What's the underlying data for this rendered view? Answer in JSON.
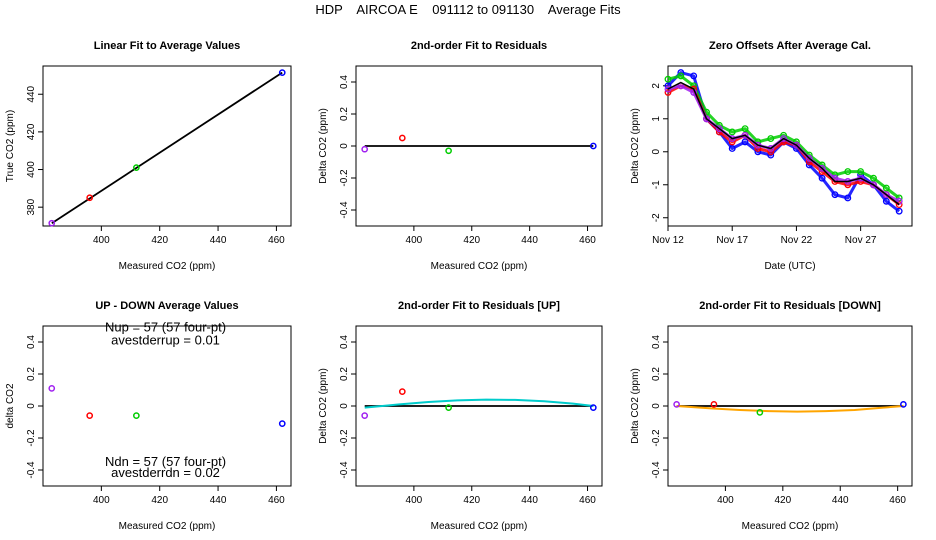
{
  "page_title": "HDP    AIRCOA E    091112 to 091130    Average Fits",
  "chart_data": [
    {
      "type": "scatter",
      "title": "Linear Fit to Average Values",
      "xlabel": "Measured CO2 (ppm)",
      "ylabel": "True CO2 (ppm)",
      "xlim": [
        380,
        465
      ],
      "ylim": [
        370,
        455
      ],
      "xticks": [
        400,
        420,
        440,
        460
      ],
      "yticks": [
        380,
        400,
        420,
        440
      ],
      "points": [
        {
          "x": 383,
          "y": 371.5,
          "color": "#a020f0"
        },
        {
          "x": 396,
          "y": 385,
          "color": "#ff0000"
        },
        {
          "x": 412,
          "y": 401,
          "color": "#00cc00"
        },
        {
          "x": 462,
          "y": 451.5,
          "color": "#0000ff"
        }
      ],
      "lines": [
        {
          "x": [
            383,
            462
          ],
          "y": [
            371.5,
            451.5
          ],
          "color": "#000000"
        }
      ]
    },
    {
      "type": "scatter",
      "title": "2nd-order Fit to Residuals",
      "xlabel": "Measured CO2 (ppm)",
      "ylabel": "Delta CO2 (ppm)",
      "xlim": [
        380,
        465
      ],
      "ylim": [
        -0.5,
        0.5
      ],
      "xticks": [
        400,
        420,
        440,
        460
      ],
      "yticks": [
        -0.4,
        -0.2,
        0.0,
        0.2,
        0.4
      ],
      "points": [
        {
          "x": 383,
          "y": -0.02,
          "color": "#a020f0"
        },
        {
          "x": 396,
          "y": 0.05,
          "color": "#ff0000"
        },
        {
          "x": 412,
          "y": -0.03,
          "color": "#00cc00"
        },
        {
          "x": 462,
          "y": 0.0,
          "color": "#0000ff"
        }
      ],
      "lines": [
        {
          "x": [
            383,
            405,
            445,
            462
          ],
          "y": [
            0.0,
            0.0,
            0.0,
            0.0
          ],
          "color": "#000000"
        }
      ]
    },
    {
      "type": "line",
      "title": "Zero Offsets After Average Cal.",
      "xlabel": "Date (UTC)",
      "ylabel": "Delta CO2 (ppm)",
      "xlim": [
        "Nov 12",
        "Dec 1"
      ],
      "ylim": [
        -2.25,
        2.6
      ],
      "xtick_labels": [
        "Nov 12",
        "Nov 17",
        "Nov 22",
        "Nov 27"
      ],
      "yticks": [
        -2,
        -1,
        0,
        1,
        2
      ],
      "series": [
        {
          "color": "#0000ff",
          "x": [
            "Nov 12",
            "Nov 13",
            "Nov 14",
            "Nov 15",
            "Nov 16",
            "Nov 17",
            "Nov 18",
            "Nov 19",
            "Nov 20",
            "Nov 21",
            "Nov 22",
            "Nov 23",
            "Nov 24",
            "Nov 25",
            "Nov 26",
            "Nov 27",
            "Nov 28",
            "Nov 29",
            "Nov 30"
          ],
          "y": [
            2.0,
            2.4,
            2.3,
            1.0,
            0.6,
            0.1,
            0.3,
            0.0,
            -0.1,
            0.3,
            0.1,
            -0.4,
            -0.8,
            -1.3,
            -1.4,
            -0.7,
            -1.0,
            -1.5,
            -1.8
          ]
        },
        {
          "color": "#00cc00",
          "x": [
            "Nov 12",
            "Nov 13",
            "Nov 14",
            "Nov 15",
            "Nov 16",
            "Nov 17",
            "Nov 18",
            "Nov 19",
            "Nov 20",
            "Nov 21",
            "Nov 22",
            "Nov 23",
            "Nov 24",
            "Nov 25",
            "Nov 26",
            "Nov 27",
            "Nov 28",
            "Nov 29",
            "Nov 30"
          ],
          "y": [
            2.2,
            2.3,
            2.0,
            1.2,
            0.8,
            0.6,
            0.7,
            0.3,
            0.4,
            0.5,
            0.3,
            -0.1,
            -0.4,
            -0.7,
            -0.6,
            -0.6,
            -0.8,
            -1.1,
            -1.4
          ]
        },
        {
          "color": "#ff0000",
          "x": [
            "Nov 12",
            "Nov 13",
            "Nov 14",
            "Nov 15",
            "Nov 16",
            "Nov 17",
            "Nov 18",
            "Nov 19",
            "Nov 20",
            "Nov 21",
            "Nov 22",
            "Nov 23",
            "Nov 24",
            "Nov 25",
            "Nov 26",
            "Nov 27",
            "Nov 28",
            "Nov 29",
            "Nov 30"
          ],
          "y": [
            1.8,
            2.0,
            1.9,
            1.0,
            0.6,
            0.3,
            0.5,
            0.1,
            0.0,
            0.3,
            0.2,
            -0.3,
            -0.6,
            -0.9,
            -1.0,
            -0.9,
            -1.0,
            -1.3,
            -1.6
          ]
        },
        {
          "color": "#a020f0",
          "x": [
            "Nov 12",
            "Nov 13",
            "Nov 14",
            "Nov 15",
            "Nov 16",
            "Nov 17",
            "Nov 18",
            "Nov 19",
            "Nov 20",
            "Nov 21",
            "Nov 22",
            "Nov 23",
            "Nov 24",
            "Nov 25",
            "Nov 26",
            "Nov 27",
            "Nov 28",
            "Nov 29",
            "Nov 30"
          ],
          "y": [
            1.9,
            2.0,
            1.8,
            1.0,
            0.7,
            0.4,
            0.5,
            0.2,
            0.1,
            0.4,
            0.2,
            -0.2,
            -0.5,
            -0.8,
            -0.9,
            -0.8,
            -1.0,
            -1.3,
            -1.5
          ]
        },
        {
          "color": "#000000",
          "x": [
            "Nov 12",
            "Nov 13",
            "Nov 14",
            "Nov 15",
            "Nov 16",
            "Nov 17",
            "Nov 18",
            "Nov 19",
            "Nov 20",
            "Nov 21",
            "Nov 22",
            "Nov 23",
            "Nov 24",
            "Nov 25",
            "Nov 26",
            "Nov 27",
            "Nov 28",
            "Nov 29",
            "Nov 30"
          ],
          "y": [
            1.9,
            2.1,
            1.9,
            1.0,
            0.7,
            0.4,
            0.5,
            0.2,
            0.1,
            0.4,
            0.2,
            -0.2,
            -0.5,
            -0.9,
            -0.9,
            -0.8,
            -1.0,
            -1.3,
            -1.6
          ]
        }
      ]
    },
    {
      "type": "scatter",
      "title": "UP - DOWN Average Values",
      "xlabel": "Measured CO2 (ppm)",
      "ylabel": "delta CO2",
      "xlim": [
        380,
        465
      ],
      "ylim": [
        -0.5,
        0.5
      ],
      "xticks": [
        400,
        420,
        440,
        460
      ],
      "yticks": [
        -0.4,
        -0.2,
        0.0,
        0.2,
        0.4
      ],
      "annotations": [
        {
          "text": "Nup = 57 (57 four-pt)",
          "x": 422,
          "y": 0.465
        },
        {
          "text": "avestderrup =  0.01",
          "x": 422,
          "y": 0.385
        },
        {
          "text": "Ndn = 57 (57 four-pt)",
          "x": 422,
          "y": -0.375
        },
        {
          "text": "avestderrdn =  0.02",
          "x": 422,
          "y": -0.445
        }
      ],
      "points": [
        {
          "x": 383,
          "y": 0.11,
          "color": "#a020f0"
        },
        {
          "x": 396,
          "y": -0.06,
          "color": "#ff0000"
        },
        {
          "x": 412,
          "y": -0.06,
          "color": "#00cc00"
        },
        {
          "x": 462,
          "y": -0.11,
          "color": "#0000ff"
        }
      ]
    },
    {
      "type": "scatter",
      "title": "2nd-order Fit to Residuals [UP]",
      "xlabel": "Measured CO2 (ppm)",
      "ylabel": "Delta CO2 (ppm)",
      "xlim": [
        380,
        465
      ],
      "ylim": [
        -0.5,
        0.5
      ],
      "xticks": [
        400,
        420,
        440,
        460
      ],
      "yticks": [
        -0.4,
        -0.2,
        0.0,
        0.2,
        0.4
      ],
      "points": [
        {
          "x": 383,
          "y": -0.06,
          "color": "#a020f0"
        },
        {
          "x": 396,
          "y": 0.09,
          "color": "#ff0000"
        },
        {
          "x": 412,
          "y": -0.01,
          "color": "#00cc00"
        },
        {
          "x": 462,
          "y": -0.01,
          "color": "#0000ff"
        }
      ],
      "lines": [
        {
          "x": [
            383,
            405,
            445,
            462
          ],
          "y": [
            0.0,
            0.0,
            0.0,
            0.0
          ],
          "color": "#000000"
        },
        {
          "x": [
            383,
            395,
            405,
            415,
            425,
            435,
            445,
            455,
            462
          ],
          "y": [
            -0.01,
            0.01,
            0.025,
            0.035,
            0.04,
            0.038,
            0.03,
            0.015,
            0.0
          ],
          "color": "#00cccc"
        }
      ]
    },
    {
      "type": "scatter",
      "title": "2nd-order Fit to Residuals [DOWN]",
      "xlabel": "Measured CO2 (ppm)",
      "ylabel": "Delta CO2 (ppm)",
      "xlim": [
        380,
        465
      ],
      "ylim": [
        -0.5,
        0.5
      ],
      "xticks": [
        400,
        420,
        440,
        460
      ],
      "yticks": [
        -0.4,
        -0.2,
        0.0,
        0.2,
        0.4
      ],
      "points": [
        {
          "x": 383,
          "y": 0.01,
          "color": "#a020f0"
        },
        {
          "x": 396,
          "y": 0.01,
          "color": "#ff0000"
        },
        {
          "x": 412,
          "y": -0.04,
          "color": "#00cc00"
        },
        {
          "x": 462,
          "y": 0.01,
          "color": "#0000ff"
        }
      ],
      "lines": [
        {
          "x": [
            383,
            405,
            445,
            462
          ],
          "y": [
            0.0,
            0.0,
            0.0,
            0.0
          ],
          "color": "#000000"
        },
        {
          "x": [
            383,
            395,
            405,
            415,
            425,
            435,
            445,
            455,
            462
          ],
          "y": [
            0.0,
            -0.015,
            -0.025,
            -0.032,
            -0.035,
            -0.032,
            -0.025,
            -0.01,
            0.0
          ],
          "color": "#ffa500"
        }
      ]
    }
  ]
}
